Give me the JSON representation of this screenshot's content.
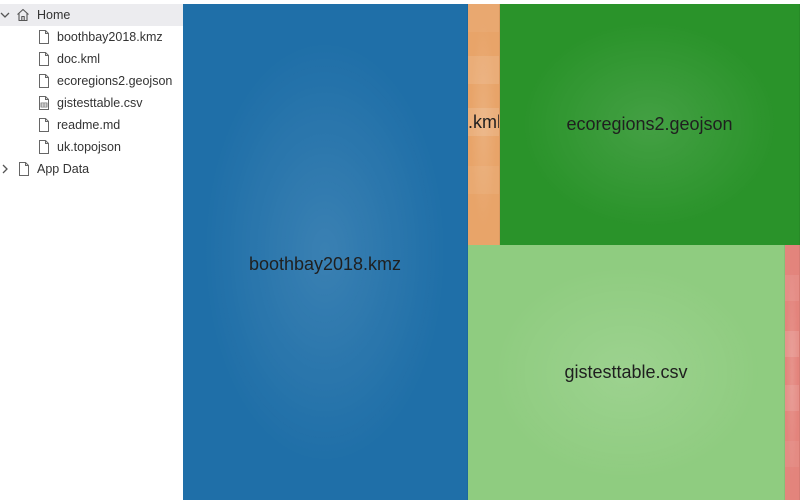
{
  "tree": {
    "root": {
      "label": "Home",
      "icon": "home-icon",
      "expanded": true
    },
    "files": [
      {
        "label": "boothbay2018.kmz",
        "icon": "file-icon"
      },
      {
        "label": "doc.kml",
        "icon": "file-icon"
      },
      {
        "label": "ecoregions2.geojson",
        "icon": "file-icon"
      },
      {
        "label": "gistesttable.csv",
        "icon": "csv-file-icon"
      },
      {
        "label": "readme.md",
        "icon": "file-icon"
      },
      {
        "label": "uk.topojson",
        "icon": "file-icon"
      }
    ],
    "app_data": {
      "label": "App Data",
      "icon": "file-icon",
      "expanded": false
    }
  },
  "treemap": {
    "tiles": [
      {
        "label": "boothbay2018.kmz",
        "color": "#1f6fa8"
      },
      {
        "label": "doc.kml",
        "color": "#e8a469"
      },
      {
        "label": "ecoregions2.geojson",
        "color": "#2a932a"
      },
      {
        "label": "gistesttable.csv",
        "color": "#8fcc80"
      },
      {
        "label": "",
        "color": "#e3847c"
      }
    ]
  }
}
